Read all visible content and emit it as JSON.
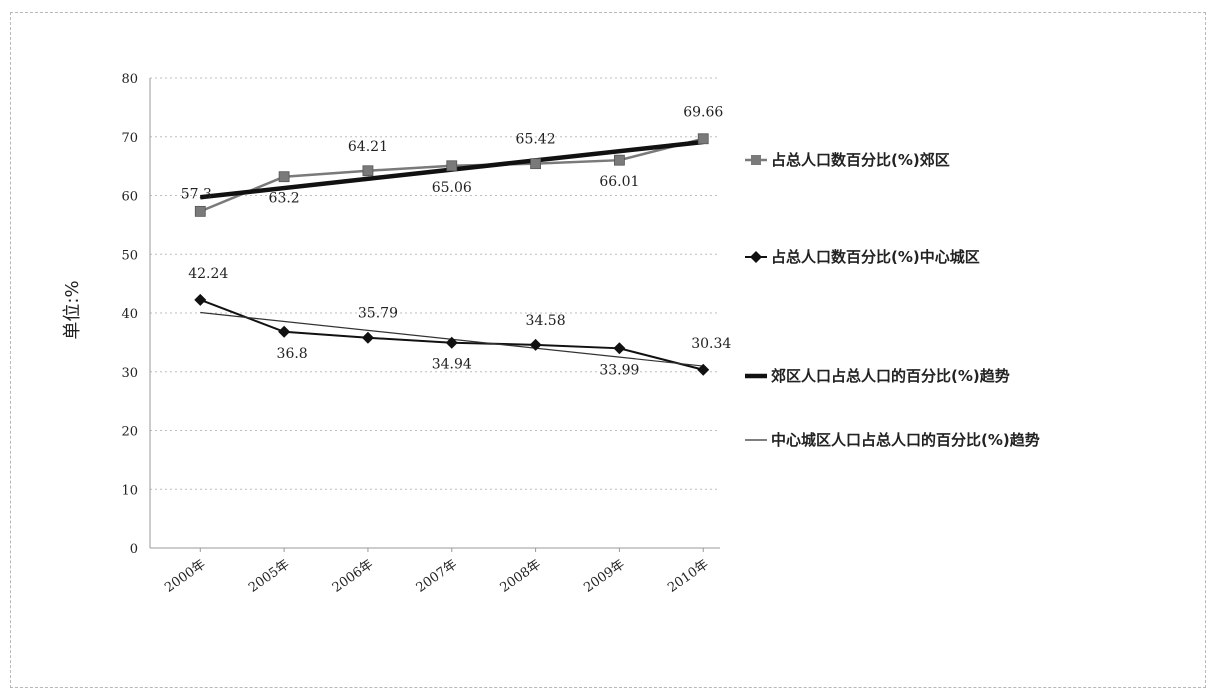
{
  "chart_data": {
    "type": "line",
    "categories": [
      "2000年",
      "2005年",
      "2006年",
      "2007年",
      "2008年",
      "2009年",
      "2010年"
    ],
    "ylabel": "单位:%",
    "ylim": [
      0,
      80
    ],
    "yticks": [
      0,
      10,
      20,
      30,
      40,
      50,
      60,
      70,
      80
    ],
    "grid": true,
    "legend_position": "right",
    "series": [
      {
        "name": "占总人口数百分比(%)郊区",
        "values": [
          57.3,
          63.2,
          64.21,
          65.06,
          65.42,
          66.01,
          69.66
        ],
        "labels": [
          "57.3",
          "63.2",
          "64.21",
          "65.06",
          "65.42",
          "66.01",
          "69.66"
        ],
        "color": "#7a7a7a",
        "marker": "square"
      },
      {
        "name": "占总人口数百分比(%)中心城区",
        "values": [
          42.24,
          36.8,
          35.79,
          34.94,
          34.58,
          33.99,
          30.34
        ],
        "labels": [
          "42.24",
          "36.8",
          "35.79",
          "34.94",
          "34.58",
          "33.99",
          "30.34"
        ],
        "color": "#111111",
        "marker": "diamond"
      },
      {
        "name": "郊区人口占总人口的百分比(%)趋势",
        "trend_of": 0,
        "color": "#111111"
      },
      {
        "name": "中心城区人口占总人口的百分比(%)趋势",
        "trend_of": 1,
        "color": "#333333"
      }
    ]
  }
}
